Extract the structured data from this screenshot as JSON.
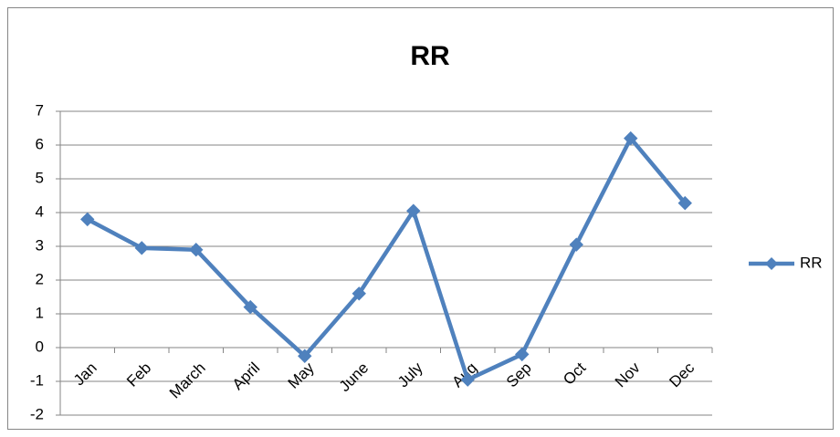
{
  "chart_data": {
    "type": "line",
    "title": "RR",
    "categories": [
      "Jan",
      "Feb",
      "March",
      "April",
      "May",
      "June",
      "July",
      "Aug",
      "Sep",
      "Oct",
      "Nov",
      "Dec"
    ],
    "series": [
      {
        "name": "RR",
        "color": "#4f81bd",
        "values": [
          3.8,
          2.95,
          2.9,
          1.2,
          -0.25,
          1.6,
          4.05,
          -0.95,
          -0.2,
          3.05,
          6.2,
          4.28
        ]
      }
    ],
    "ylim": [
      -2,
      7
    ],
    "yticks": [
      -2,
      -1,
      0,
      1,
      2,
      3,
      4,
      5,
      6,
      7
    ],
    "grid": true,
    "legend": "right"
  }
}
